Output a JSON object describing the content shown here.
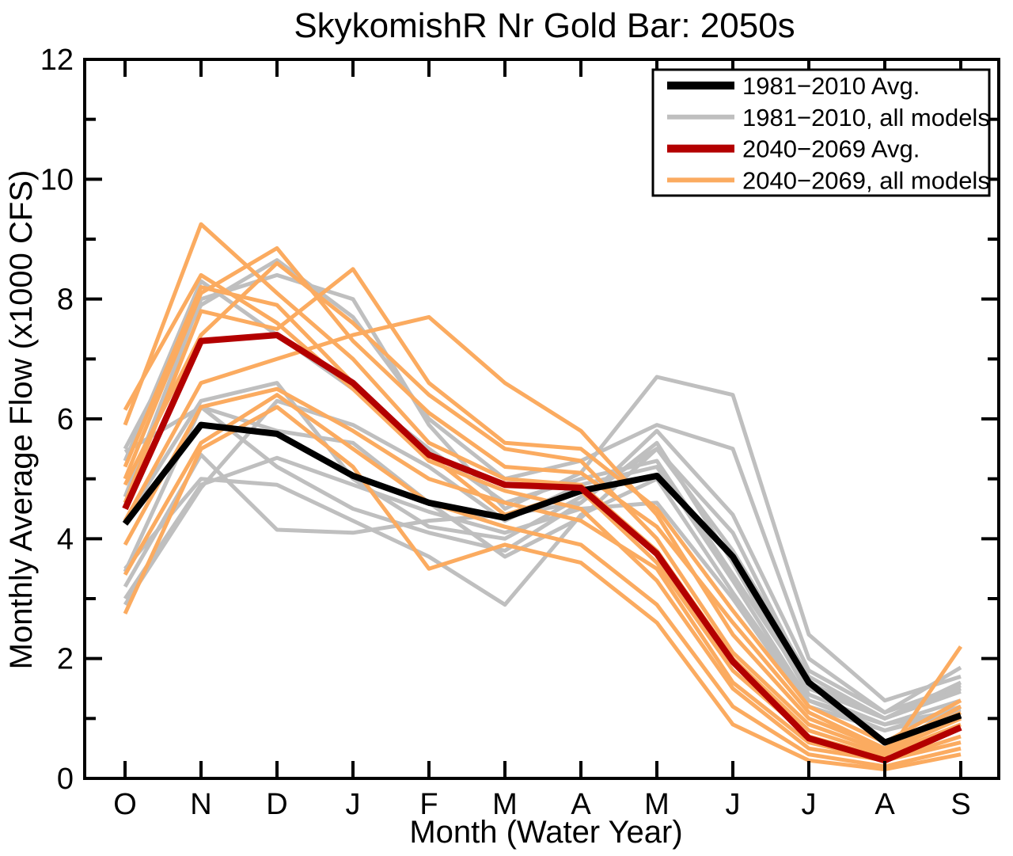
{
  "title": "SkykomishR Nr Gold Bar: 2050s",
  "axes": {
    "xlabel": "Month (Water Year)",
    "ylabel": "Monthly Average Flow (x1000 CFS)",
    "x_tick_labels": [
      "O",
      "N",
      "D",
      "J",
      "F",
      "M",
      "A",
      "M",
      "J",
      "J",
      "A",
      "S"
    ],
    "y_tick_values": [
      0,
      2,
      4,
      6,
      8,
      10,
      12
    ],
    "ylim": [
      0,
      12
    ]
  },
  "colors": {
    "avg_historical": "#000000",
    "model_historical": "#bfbfbf",
    "avg_future": "#b30000",
    "model_future": "#fbab60",
    "axis": "#000000",
    "legend_bg": "#ffffff"
  },
  "legend": {
    "position": "top-right",
    "entries": [
      {
        "label": "1981−2010 Avg.",
        "color": "#000000",
        "swatch_width": 10
      },
      {
        "label": "1981−2010, all models",
        "color": "#bfbfbf",
        "swatch_width": 6
      },
      {
        "label": "2040−2069 Avg.",
        "color": "#b30000",
        "swatch_width": 10
      },
      {
        "label": "2040−2069, all models",
        "color": "#fbab60",
        "swatch_width": 6
      }
    ]
  },
  "chart_data": {
    "type": "line",
    "title": "SkykomishR Nr Gold Bar: 2050s",
    "xlabel": "Month (Water Year)",
    "ylabel": "Monthly Average Flow (x1000 CFS)",
    "x_categories": [
      "O",
      "N",
      "D",
      "J",
      "F",
      "M",
      "A",
      "M",
      "J",
      "J",
      "A",
      "S"
    ],
    "ylim": [
      0,
      12
    ],
    "grid": false,
    "legend_position": "top-right",
    "series": [
      {
        "name": "model-hist-1",
        "group": "1981-2010, all models",
        "color": "#bfbfbf",
        "width": 5,
        "values": [
          3.0,
          4.9,
          5.35,
          4.9,
          4.45,
          4.1,
          4.5,
          4.6,
          3.0,
          1.2,
          0.8,
          1.2
        ]
      },
      {
        "name": "model-hist-2",
        "group": "1981-2010, all models",
        "color": "#bfbfbf",
        "width": 5,
        "values": [
          3.2,
          5.4,
          4.15,
          4.1,
          4.3,
          4.4,
          4.6,
          5.6,
          3.6,
          1.4,
          0.9,
          1.3
        ]
      },
      {
        "name": "model-hist-3",
        "group": "1981-2010, all models",
        "color": "#bfbfbf",
        "width": 5,
        "values": [
          3.45,
          6.2,
          5.8,
          5.6,
          4.6,
          3.7,
          4.35,
          5.5,
          4.1,
          1.6,
          1.0,
          1.45
        ]
      },
      {
        "name": "model-hist-4",
        "group": "1981-2010, all models",
        "color": "#bfbfbf",
        "width": 5,
        "values": [
          2.9,
          4.85,
          6.3,
          5.9,
          5.2,
          4.3,
          4.9,
          5.2,
          3.3,
          1.3,
          0.9,
          1.15
        ]
      },
      {
        "name": "model-hist-5",
        "group": "1981-2010, all models",
        "color": "#bfbfbf",
        "width": 5,
        "values": [
          5.3,
          8.3,
          7.4,
          6.5,
          5.5,
          4.6,
          5.0,
          5.3,
          3.4,
          1.5,
          1.0,
          1.5
        ]
      },
      {
        "name": "model-hist-6",
        "group": "1981-2010, all models",
        "color": "#bfbfbf",
        "width": 5,
        "values": [
          5.5,
          7.9,
          8.65,
          7.7,
          6.0,
          5.0,
          5.3,
          5.9,
          5.5,
          2.0,
          1.1,
          1.55
        ]
      },
      {
        "name": "model-hist-7",
        "group": "1981-2010, all models",
        "color": "#bfbfbf",
        "width": 5,
        "values": [
          4.7,
          8.0,
          8.4,
          8.0,
          5.9,
          4.5,
          5.1,
          6.7,
          6.4,
          2.4,
          1.3,
          1.7
        ]
      },
      {
        "name": "model-hist-8",
        "group": "1981-2010, all models",
        "color": "#bfbfbf",
        "width": 5,
        "values": [
          3.5,
          5.0,
          4.9,
          4.3,
          3.7,
          2.9,
          4.4,
          5.0,
          3.1,
          1.3,
          0.8,
          1.1
        ]
      },
      {
        "name": "model-hist-9",
        "group": "1981-2010, all models",
        "color": "#bfbfbf",
        "width": 5,
        "values": [
          4.3,
          6.3,
          6.6,
          5.0,
          4.2,
          4.0,
          4.7,
          5.5,
          3.8,
          1.7,
          1.0,
          1.6
        ]
      },
      {
        "name": "model-hist-10",
        "group": "1981-2010, all models",
        "color": "#bfbfbf",
        "width": 5,
        "values": [
          5.45,
          6.2,
          5.2,
          4.5,
          4.1,
          3.8,
          4.6,
          5.8,
          4.4,
          1.8,
          1.1,
          1.85
        ]
      },
      {
        "name": "model-fut-1",
        "group": "2040-2069, all models",
        "color": "#fbab60",
        "width": 5,
        "values": [
          6.15,
          8.4,
          7.6,
          6.5,
          5.3,
          4.8,
          4.5,
          3.3,
          1.5,
          0.5,
          0.3,
          0.6
        ]
      },
      {
        "name": "model-fut-2",
        "group": "2040-2069, all models",
        "color": "#fbab60",
        "width": 5,
        "values": [
          5.9,
          9.25,
          8.1,
          7.0,
          5.6,
          5.0,
          4.9,
          3.8,
          2.0,
          0.8,
          0.4,
          0.9
        ]
      },
      {
        "name": "model-fut-3",
        "group": "2040-2069, all models",
        "color": "#fbab60",
        "width": 5,
        "values": [
          5.0,
          8.1,
          8.85,
          7.3,
          6.1,
          5.2,
          5.1,
          4.2,
          2.6,
          1.1,
          0.5,
          1.1
        ]
      },
      {
        "name": "model-fut-4",
        "group": "2040-2069, all models",
        "color": "#fbab60",
        "width": 5,
        "values": [
          4.6,
          7.8,
          7.5,
          8.5,
          6.6,
          5.6,
          5.5,
          4.5,
          2.8,
          1.2,
          0.6,
          1.3
        ]
      },
      {
        "name": "model-fut-5",
        "group": "2040-2069, all models",
        "color": "#fbab60",
        "width": 5,
        "values": [
          4.3,
          6.6,
          7.0,
          7.4,
          7.7,
          6.6,
          5.8,
          4.4,
          2.4,
          1.0,
          0.5,
          1.2
        ]
      },
      {
        "name": "model-fut-6",
        "group": "2040-2069, all models",
        "color": "#fbab60",
        "width": 5,
        "values": [
          3.9,
          6.2,
          6.5,
          5.8,
          5.0,
          4.6,
          4.3,
          3.5,
          1.6,
          0.6,
          0.3,
          0.7
        ]
      },
      {
        "name": "model-fut-7",
        "group": "2040-2069, all models",
        "color": "#fbab60",
        "width": 5,
        "values": [
          3.4,
          5.6,
          6.4,
          5.5,
          4.6,
          4.2,
          3.9,
          2.9,
          1.2,
          0.4,
          0.2,
          0.5
        ]
      },
      {
        "name": "model-fut-8",
        "group": "2040-2069, all models",
        "color": "#fbab60",
        "width": 5,
        "values": [
          2.75,
          5.5,
          6.2,
          5.2,
          3.5,
          3.9,
          3.6,
          2.6,
          0.9,
          0.3,
          0.15,
          0.4
        ]
      },
      {
        "name": "model-fut-9",
        "group": "2040-2069, all models",
        "color": "#fbab60",
        "width": 5,
        "values": [
          4.9,
          7.4,
          8.6,
          7.6,
          6.4,
          5.5,
          5.3,
          4.0,
          2.1,
          0.9,
          0.45,
          1.0
        ]
      },
      {
        "name": "model-fut-10",
        "group": "2040-2069, all models",
        "color": "#fbab60",
        "width": 5,
        "values": [
          5.2,
          8.2,
          7.9,
          6.6,
          5.4,
          4.4,
          4.8,
          3.6,
          1.8,
          0.7,
          0.35,
          2.2
        ]
      },
      {
        "name": "avg-1981-2010",
        "group": "1981-2010 Avg.",
        "color": "#000000",
        "width": 8,
        "values": [
          4.25,
          5.9,
          5.75,
          5.05,
          4.6,
          4.35,
          4.8,
          5.05,
          3.7,
          1.6,
          0.6,
          1.05
        ]
      },
      {
        "name": "avg-2040-2069",
        "group": "2040-2069 Avg.",
        "color": "#b30000",
        "width": 8,
        "values": [
          4.5,
          7.3,
          7.4,
          6.6,
          5.4,
          4.9,
          4.85,
          3.75,
          1.95,
          0.67,
          0.3,
          0.85
        ]
      }
    ]
  }
}
